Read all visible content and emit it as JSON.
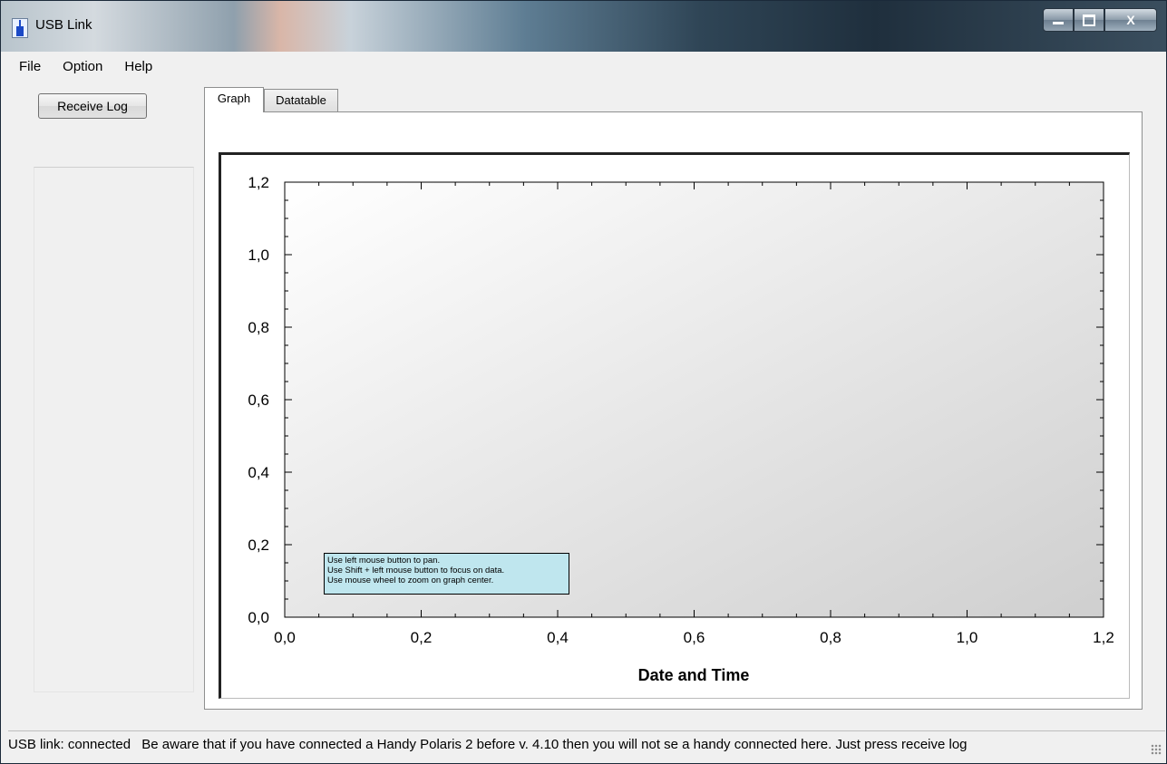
{
  "window": {
    "title": "USB Link",
    "icon": "usb-link-app-icon",
    "controls": [
      "minimize-icon",
      "maximize-icon",
      "close-icon"
    ],
    "close_glyph": "X"
  },
  "menu": {
    "items": [
      {
        "label": "File"
      },
      {
        "label": "Option"
      },
      {
        "label": "Help"
      }
    ]
  },
  "left": {
    "receive_button_label": "Receive Log"
  },
  "tabs": [
    {
      "label": "Graph",
      "active": true
    },
    {
      "label": "Datatable",
      "active": false
    }
  ],
  "chart_data": {
    "type": "line",
    "title": "",
    "xlabel": "Date and Time",
    "ylabel": "",
    "xlim": [
      0.0,
      1.2
    ],
    "ylim": [
      0.0,
      1.2
    ],
    "x_ticks": [
      "0,0",
      "0,2",
      "0,4",
      "0,6",
      "0,8",
      "1,0",
      "1,2"
    ],
    "y_ticks": [
      "0,0",
      "0,2",
      "0,4",
      "0,6",
      "0,8",
      "1,0",
      "1,2"
    ],
    "series": [],
    "grid": false,
    "background": "gradient"
  },
  "hint": {
    "lines": [
      "Use left mouse button to pan.",
      "Use Shift + left mouse button to focus on data.",
      "Use mouse wheel to zoom on graph center."
    ]
  },
  "status": {
    "label": "USB link: connected",
    "message": "Be aware that if you have connected a Handy Polaris 2 before v. 4.10 then you will not se a handy connected here. Just press receive log"
  }
}
